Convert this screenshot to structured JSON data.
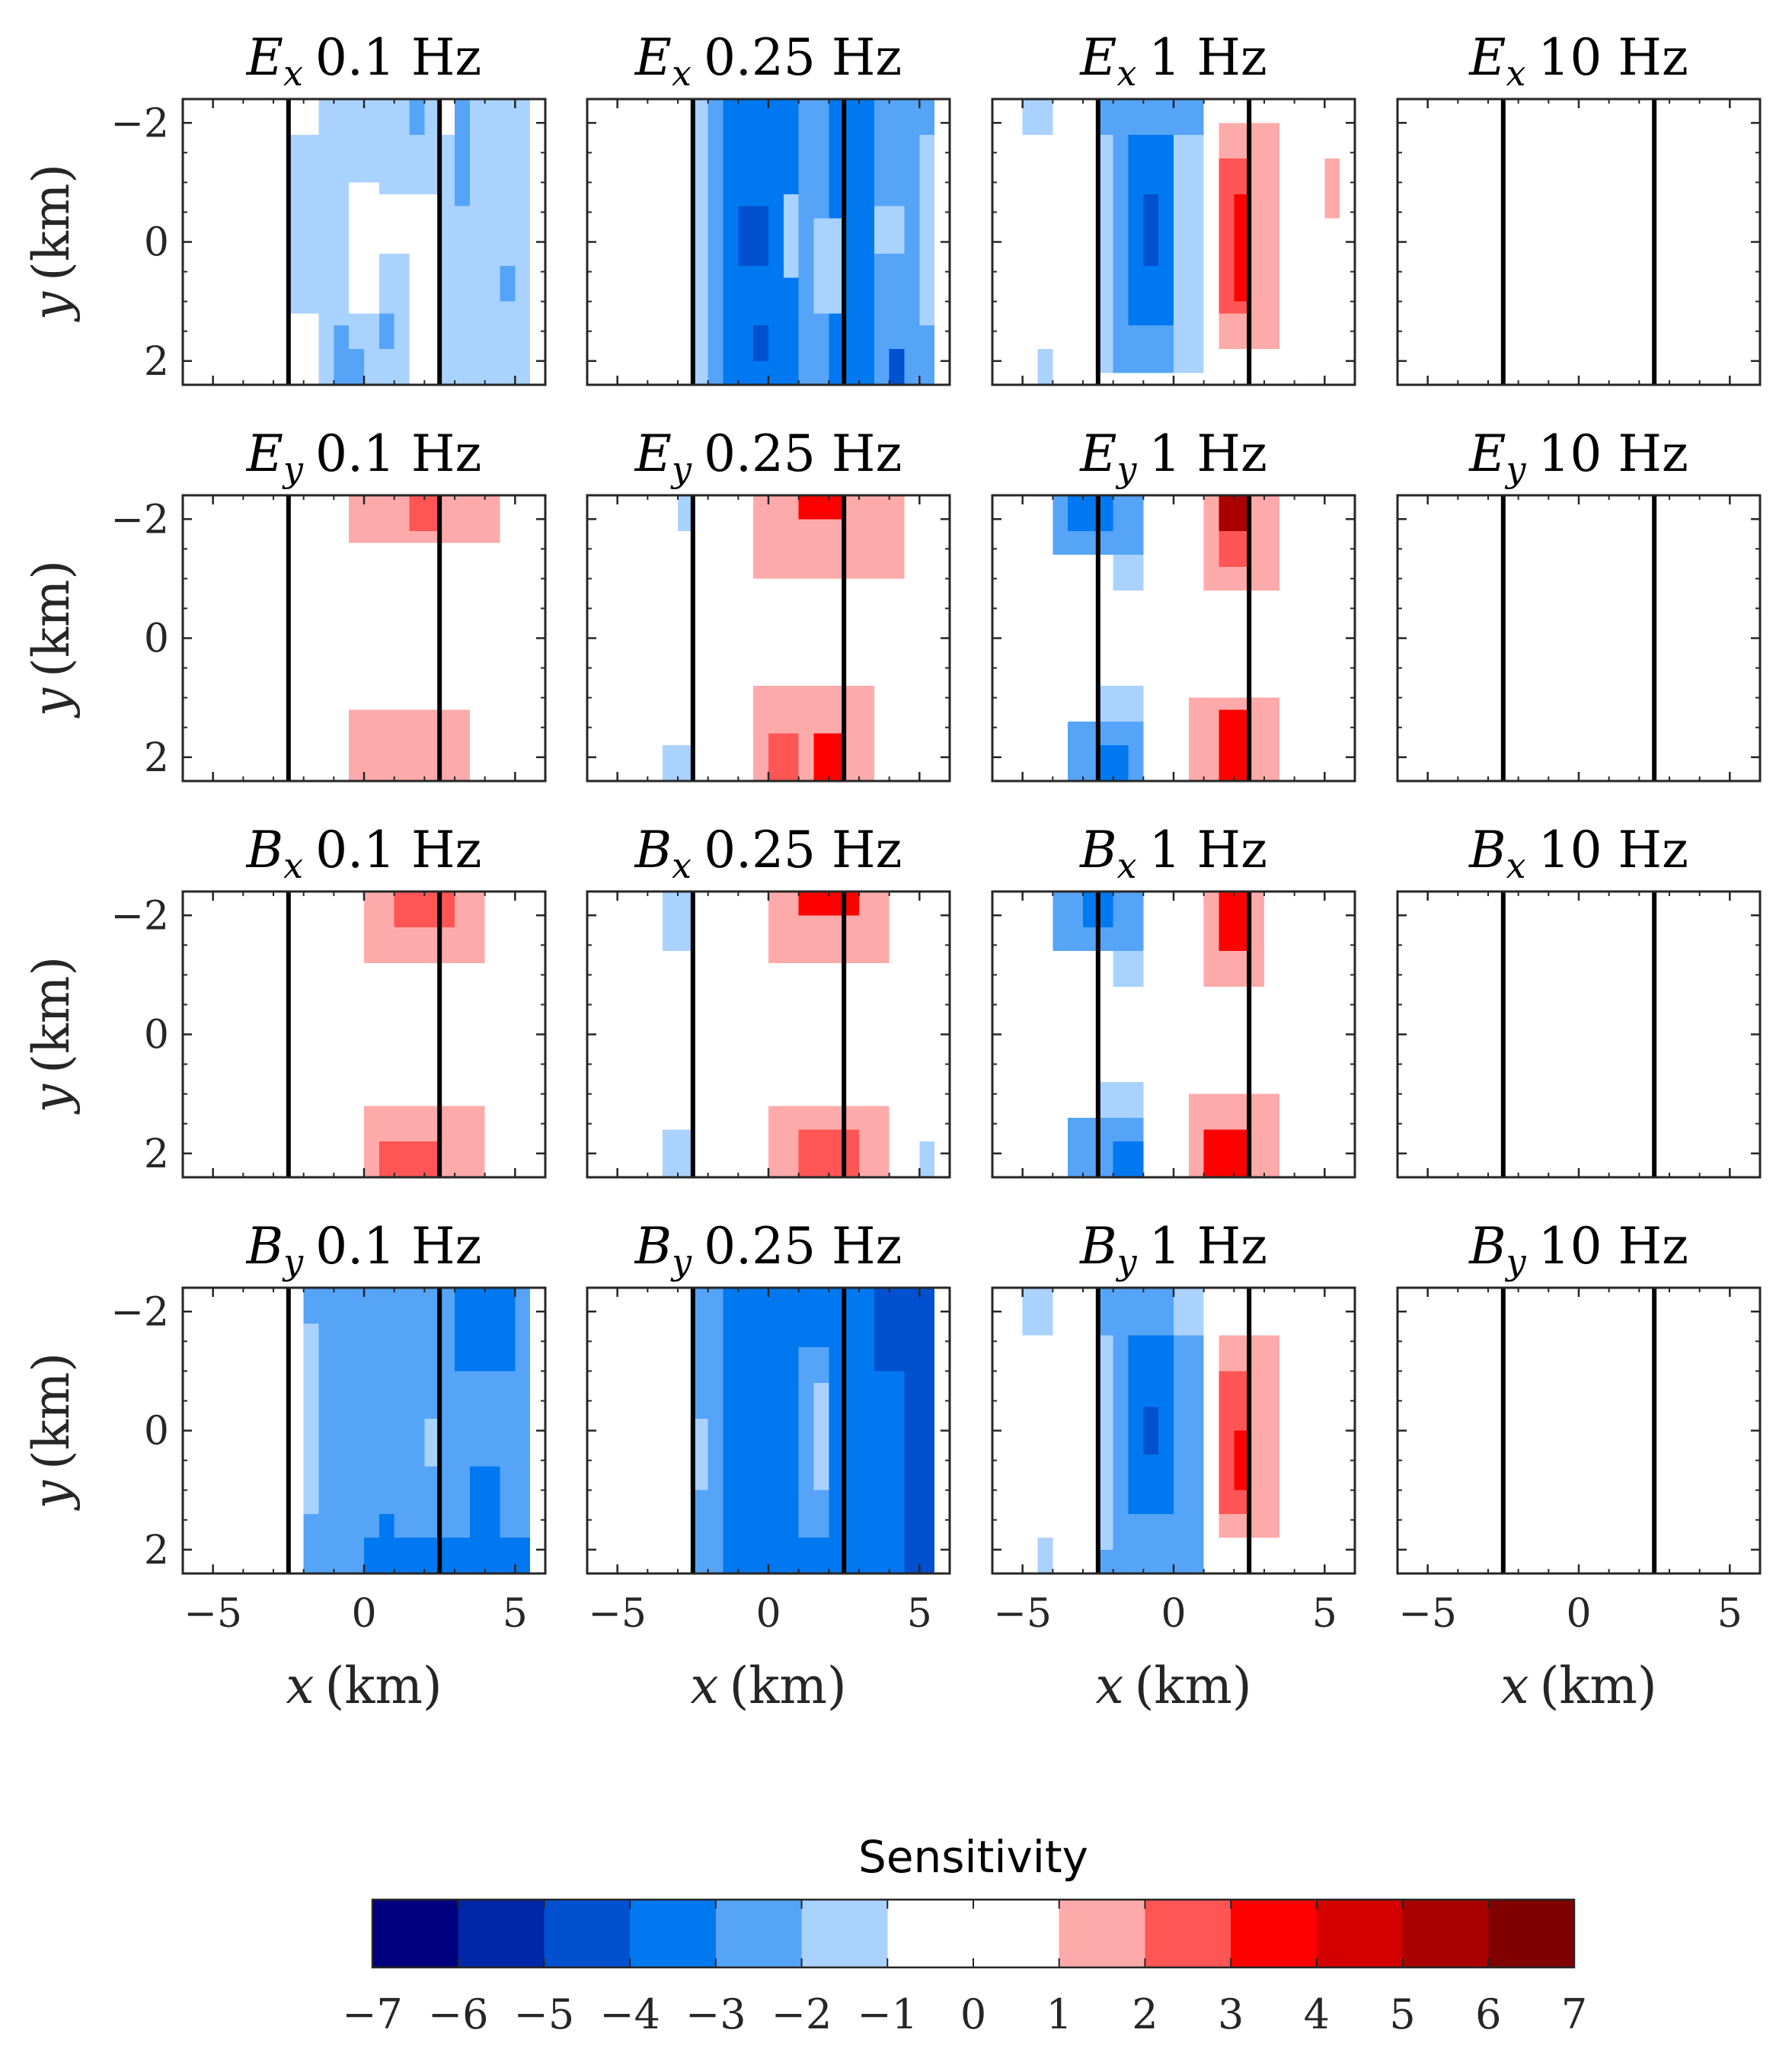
{
  "chart_data": {
    "type": "heatmap",
    "layout": {
      "rows": 4,
      "cols": 4
    },
    "x_range": [
      -6,
      6
    ],
    "y_range": [
      -2.4,
      2.4
    ],
    "x_ticks": [
      -5,
      0,
      5
    ],
    "y_ticks": [
      -2,
      0,
      2
    ],
    "xlabel": "x (km)",
    "ylabel": "y (km)",
    "reference_lines_x": [
      -2.5,
      2.5
    ],
    "grid": false,
    "cell_size_km": [
      0.5,
      0.5
    ],
    "panels": [
      {
        "field": "E",
        "component": "x",
        "freq": "0.1 Hz",
        "cells": [
          {
            "x0": -1.5,
            "x1": 2.5,
            "y0": -2.4,
            "y1": -1.8,
            "v": -1.5
          },
          {
            "x0": 3.5,
            "x1": 5.5,
            "y0": -2.4,
            "y1": -1.8,
            "v": -1.5
          },
          {
            "x0": 1.5,
            "x1": 2.0,
            "y0": -2.4,
            "y1": -1.8,
            "v": -2.5
          },
          {
            "x0": 3.0,
            "x1": 3.5,
            "y0": -2.4,
            "y1": -1.8,
            "v": -2.5
          },
          {
            "x0": -2.5,
            "x1": 2.5,
            "y0": -1.8,
            "y1": 1.2,
            "v": -1.5
          },
          {
            "x0": -0.5,
            "x1": 0.5,
            "y0": -1.0,
            "y1": 1.4,
            "v": 0
          },
          {
            "x0": 0.5,
            "x1": 1.5,
            "y0": -0.8,
            "y1": 0.2,
            "v": 0
          },
          {
            "x0": 2.5,
            "x1": 5.5,
            "y0": -1.8,
            "y1": 2.4,
            "v": -1.5
          },
          {
            "x0": 1.5,
            "x1": 2.5,
            "y0": -0.8,
            "y1": 2.4,
            "v": 0
          },
          {
            "x0": 3.0,
            "x1": 3.5,
            "y0": -1.8,
            "y1": -0.6,
            "v": -2.5
          },
          {
            "x0": 4.5,
            "x1": 5.0,
            "y0": 0.4,
            "y1": 1.0,
            "v": -2.5
          },
          {
            "x0": -1.5,
            "x1": 1.5,
            "y0": 1.2,
            "y1": 2.4,
            "v": -1.5
          },
          {
            "x0": -1.0,
            "x1": -0.5,
            "y0": 1.4,
            "y1": 2.4,
            "v": -2.5
          },
          {
            "x0": -0.5,
            "x1": 0.0,
            "y0": 1.8,
            "y1": 2.4,
            "v": -2.5
          },
          {
            "x0": 0.5,
            "x1": 1.0,
            "y0": 1.2,
            "y1": 1.8,
            "v": -2.5
          }
        ]
      },
      {
        "field": "E",
        "component": "x",
        "freq": "0.25 Hz",
        "cells": [
          {
            "x0": -2.5,
            "x1": 5.5,
            "y0": -2.4,
            "y1": 2.4,
            "v": -2.5
          },
          {
            "x0": -2.5,
            "x1": -2.0,
            "y0": -2.4,
            "y1": 2.4,
            "v": -1.5
          },
          {
            "x0": -1.5,
            "x1": 1.0,
            "y0": -2.4,
            "y1": 2.4,
            "v": -3.5
          },
          {
            "x0": 2.0,
            "x1": 3.5,
            "y0": -2.4,
            "y1": 2.4,
            "v": -3.5
          },
          {
            "x0": 0.5,
            "x1": 1.0,
            "y0": -0.8,
            "y1": 0.6,
            "v": -1.5
          },
          {
            "x0": 1.5,
            "x1": 2.5,
            "y0": -0.4,
            "y1": 1.2,
            "v": -1.5
          },
          {
            "x0": 3.5,
            "x1": 4.5,
            "y0": -0.6,
            "y1": 0.2,
            "v": -1.5
          },
          {
            "x0": -1.0,
            "x1": 0.0,
            "y0": -0.6,
            "y1": 0.4,
            "v": -4.5
          },
          {
            "x0": -0.5,
            "x1": 0.0,
            "y0": 1.4,
            "y1": 2.0,
            "v": -4.5
          },
          {
            "x0": 4.0,
            "x1": 4.5,
            "y0": 1.8,
            "y1": 2.4,
            "v": -4.5
          },
          {
            "x0": 5.0,
            "x1": 5.5,
            "y0": -1.8,
            "y1": 1.4,
            "v": -1.5
          }
        ]
      },
      {
        "field": "E",
        "component": "x",
        "freq": "1 Hz",
        "cells": [
          {
            "x0": -5.0,
            "x1": -4.0,
            "y0": -2.4,
            "y1": -1.8,
            "v": -1.5
          },
          {
            "x0": -2.5,
            "x1": 1.0,
            "y0": -2.4,
            "y1": 2.2,
            "v": -2.5
          },
          {
            "x0": -2.5,
            "x1": -2.0,
            "y0": -1.8,
            "y1": 2.2,
            "v": -1.5
          },
          {
            "x0": 0.0,
            "x1": 1.0,
            "y0": -1.8,
            "y1": 2.2,
            "v": -1.5
          },
          {
            "x0": -1.5,
            "x1": 0.0,
            "y0": -1.8,
            "y1": 1.4,
            "v": -3.5
          },
          {
            "x0": -1.0,
            "x1": -0.5,
            "y0": -0.8,
            "y1": 0.4,
            "v": -4.5
          },
          {
            "x0": 1.5,
            "x1": 3.5,
            "y0": -2.0,
            "y1": 1.8,
            "v": 1.5
          },
          {
            "x0": 1.5,
            "x1": 2.5,
            "y0": -1.4,
            "y1": 1.2,
            "v": 2.5
          },
          {
            "x0": 2.0,
            "x1": 2.5,
            "y0": -0.8,
            "y1": 1.0,
            "v": 3.5
          },
          {
            "x0": 5.0,
            "x1": 5.5,
            "y0": -1.4,
            "y1": -0.4,
            "v": 1.5
          },
          {
            "x0": -4.5,
            "x1": -4.0,
            "y0": 1.8,
            "y1": 2.4,
            "v": -1.5
          }
        ]
      },
      {
        "field": "E",
        "component": "x",
        "freq": "10 Hz",
        "cells": []
      },
      {
        "field": "E",
        "component": "y",
        "freq": "0.1 Hz",
        "cells": [
          {
            "x0": -0.5,
            "x1": 4.5,
            "y0": -2.4,
            "y1": -1.6,
            "v": 1.5
          },
          {
            "x0": 1.5,
            "x1": 2.5,
            "y0": -2.4,
            "y1": -1.8,
            "v": 2.5
          },
          {
            "x0": -0.5,
            "x1": 3.5,
            "y0": 1.2,
            "y1": 2.4,
            "v": 1.5
          }
        ]
      },
      {
        "field": "E",
        "component": "y",
        "freq": "0.25 Hz",
        "cells": [
          {
            "x0": -3.0,
            "x1": -2.5,
            "y0": -2.4,
            "y1": -1.8,
            "v": -1.5
          },
          {
            "x0": -0.5,
            "x1": 4.5,
            "y0": -2.4,
            "y1": -1.0,
            "v": 1.5
          },
          {
            "x0": 1.0,
            "x1": 2.5,
            "y0": -2.4,
            "y1": -2.0,
            "v": 3.5
          },
          {
            "x0": -0.5,
            "x1": 3.5,
            "y0": 0.8,
            "y1": 2.4,
            "v": 1.5
          },
          {
            "x0": 0.0,
            "x1": 1.0,
            "y0": 1.6,
            "y1": 2.4,
            "v": 2.5
          },
          {
            "x0": 1.5,
            "x1": 2.5,
            "y0": 1.6,
            "y1": 2.4,
            "v": 3.5
          },
          {
            "x0": -3.5,
            "x1": -2.5,
            "y0": 1.8,
            "y1": 2.4,
            "v": -1.5
          }
        ]
      },
      {
        "field": "E",
        "component": "y",
        "freq": "1 Hz",
        "cells": [
          {
            "x0": -4.0,
            "x1": -1.0,
            "y0": -2.4,
            "y1": -1.4,
            "v": -2.5
          },
          {
            "x0": -3.5,
            "x1": -2.0,
            "y0": -2.4,
            "y1": -1.8,
            "v": -3.5
          },
          {
            "x0": -2.0,
            "x1": -1.0,
            "y0": -1.4,
            "y1": -0.8,
            "v": -1.5
          },
          {
            "x0": 1.0,
            "x1": 3.5,
            "y0": -2.4,
            "y1": -0.8,
            "v": 1.5
          },
          {
            "x0": 1.5,
            "x1": 2.5,
            "y0": -2.4,
            "y1": -1.2,
            "v": 2.5
          },
          {
            "x0": 1.5,
            "x1": 2.5,
            "y0": -2.4,
            "y1": -1.8,
            "v": 5.5
          },
          {
            "x0": -2.5,
            "x1": -1.0,
            "y0": 0.8,
            "y1": 1.4,
            "v": -1.5
          },
          {
            "x0": -3.5,
            "x1": -1.0,
            "y0": 1.4,
            "y1": 2.4,
            "v": -2.5
          },
          {
            "x0": -2.5,
            "x1": -1.5,
            "y0": 1.8,
            "y1": 2.4,
            "v": -3.5
          },
          {
            "x0": 0.5,
            "x1": 3.5,
            "y0": 1.0,
            "y1": 2.4,
            "v": 1.5
          },
          {
            "x0": 1.5,
            "x1": 2.5,
            "y0": 1.2,
            "y1": 2.4,
            "v": 3.5
          }
        ]
      },
      {
        "field": "E",
        "component": "y",
        "freq": "10 Hz",
        "cells": []
      },
      {
        "field": "B",
        "component": "x",
        "freq": "0.1 Hz",
        "cells": [
          {
            "x0": 0.0,
            "x1": 4.0,
            "y0": -2.4,
            "y1": -1.2,
            "v": 1.5
          },
          {
            "x0": 1.0,
            "x1": 3.0,
            "y0": -2.4,
            "y1": -1.8,
            "v": 2.5
          },
          {
            "x0": 0.0,
            "x1": 4.0,
            "y0": 1.2,
            "y1": 2.4,
            "v": 1.5
          },
          {
            "x0": 0.5,
            "x1": 2.5,
            "y0": 1.8,
            "y1": 2.4,
            "v": 2.5
          }
        ]
      },
      {
        "field": "B",
        "component": "x",
        "freq": "0.25 Hz",
        "cells": [
          {
            "x0": -3.5,
            "x1": -2.5,
            "y0": -2.4,
            "y1": -1.4,
            "v": -1.5
          },
          {
            "x0": 0.0,
            "x1": 4.0,
            "y0": -2.4,
            "y1": -1.2,
            "v": 1.5
          },
          {
            "x0": 1.0,
            "x1": 3.0,
            "y0": -2.4,
            "y1": -2.0,
            "v": 3.5
          },
          {
            "x0": -3.5,
            "x1": -2.5,
            "y0": 1.6,
            "y1": 2.4,
            "v": -1.5
          },
          {
            "x0": 0.0,
            "x1": 4.0,
            "y0": 1.2,
            "y1": 2.4,
            "v": 1.5
          },
          {
            "x0": 1.0,
            "x1": 3.0,
            "y0": 1.6,
            "y1": 2.4,
            "v": 2.5
          },
          {
            "x0": 5.0,
            "x1": 5.5,
            "y0": 1.8,
            "y1": 2.4,
            "v": -1.5
          }
        ]
      },
      {
        "field": "B",
        "component": "x",
        "freq": "1 Hz",
        "cells": [
          {
            "x0": -4.0,
            "x1": -1.0,
            "y0": -2.4,
            "y1": -1.4,
            "v": -2.5
          },
          {
            "x0": -3.0,
            "x1": -2.0,
            "y0": -2.4,
            "y1": -1.8,
            "v": -3.5
          },
          {
            "x0": -2.0,
            "x1": -1.0,
            "y0": -1.4,
            "y1": -0.8,
            "v": -1.5
          },
          {
            "x0": 1.0,
            "x1": 3.0,
            "y0": -2.4,
            "y1": -0.8,
            "v": 1.5
          },
          {
            "x0": 1.5,
            "x1": 2.5,
            "y0": -2.4,
            "y1": -1.4,
            "v": 3.5
          },
          {
            "x0": -2.5,
            "x1": -1.0,
            "y0": 0.8,
            "y1": 1.4,
            "v": -1.5
          },
          {
            "x0": -3.5,
            "x1": -1.0,
            "y0": 1.4,
            "y1": 2.4,
            "v": -2.5
          },
          {
            "x0": -2.0,
            "x1": -1.0,
            "y0": 1.8,
            "y1": 2.4,
            "v": -3.5
          },
          {
            "x0": 0.5,
            "x1": 3.5,
            "y0": 1.0,
            "y1": 2.4,
            "v": 1.5
          },
          {
            "x0": 1.0,
            "x1": 2.5,
            "y0": 1.6,
            "y1": 2.4,
            "v": 3.5
          }
        ]
      },
      {
        "field": "B",
        "component": "x",
        "freq": "10 Hz",
        "cells": []
      },
      {
        "field": "B",
        "component": "y",
        "freq": "0.1 Hz",
        "cells": [
          {
            "x0": -2.5,
            "x1": 5.5,
            "y0": -2.4,
            "y1": 2.4,
            "v": -2.5
          },
          {
            "x0": -2.5,
            "x1": -1.5,
            "y0": -1.8,
            "y1": 1.4,
            "v": -1.5
          },
          {
            "x0": -2.5,
            "x1": -2.0,
            "y0": -2.4,
            "y1": 2.4,
            "v": 0
          },
          {
            "x0": 2.0,
            "x1": 2.5,
            "y0": -0.2,
            "y1": 0.6,
            "v": -1.5
          },
          {
            "x0": 3.0,
            "x1": 5.0,
            "y0": -2.4,
            "y1": -1.0,
            "v": -3.5
          },
          {
            "x0": 0.0,
            "x1": 5.5,
            "y0": 1.8,
            "y1": 2.4,
            "v": -3.5
          },
          {
            "x0": 0.5,
            "x1": 1.0,
            "y0": 1.4,
            "y1": 1.8,
            "v": -3.5
          },
          {
            "x0": 3.5,
            "x1": 4.5,
            "y0": 0.6,
            "y1": 1.8,
            "v": -3.5
          }
        ]
      },
      {
        "field": "B",
        "component": "y",
        "freq": "0.25 Hz",
        "cells": [
          {
            "x0": -2.5,
            "x1": 5.5,
            "y0": -2.4,
            "y1": 2.4,
            "v": -3.5
          },
          {
            "x0": -2.5,
            "x1": -1.5,
            "y0": -2.4,
            "y1": 2.4,
            "v": -2.5
          },
          {
            "x0": -2.5,
            "x1": -2.0,
            "y0": -0.2,
            "y1": 1.0,
            "v": -1.5
          },
          {
            "x0": 1.0,
            "x1": 2.0,
            "y0": -1.4,
            "y1": 1.8,
            "v": -2.5
          },
          {
            "x0": 1.5,
            "x1": 2.0,
            "y0": -0.8,
            "y1": 1.0,
            "v": -1.5
          },
          {
            "x0": 3.5,
            "x1": 5.5,
            "y0": -2.4,
            "y1": -1.0,
            "v": -4.5
          },
          {
            "x0": 4.5,
            "x1": 5.5,
            "y0": -1.0,
            "y1": 2.4,
            "v": -4.5
          }
        ]
      },
      {
        "field": "B",
        "component": "y",
        "freq": "1 Hz",
        "cells": [
          {
            "x0": -5.0,
            "x1": -4.0,
            "y0": -2.4,
            "y1": -1.6,
            "v": -1.5
          },
          {
            "x0": -2.5,
            "x1": 1.0,
            "y0": -2.4,
            "y1": 2.4,
            "v": -2.5
          },
          {
            "x0": -2.5,
            "x1": -2.0,
            "y0": -1.6,
            "y1": 2.0,
            "v": -1.5
          },
          {
            "x0": 0.0,
            "x1": 1.0,
            "y0": -2.4,
            "y1": -1.6,
            "v": -1.5
          },
          {
            "x0": -1.5,
            "x1": 0.0,
            "y0": -1.6,
            "y1": 1.4,
            "v": -3.5
          },
          {
            "x0": -1.0,
            "x1": -0.5,
            "y0": -0.4,
            "y1": 0.4,
            "v": -4.5
          },
          {
            "x0": 1.5,
            "x1": 3.5,
            "y0": -1.6,
            "y1": 1.8,
            "v": 1.5
          },
          {
            "x0": 1.5,
            "x1": 2.5,
            "y0": -1.0,
            "y1": 1.4,
            "v": 2.5
          },
          {
            "x0": 2.0,
            "x1": 2.5,
            "y0": 0.0,
            "y1": 1.0,
            "v": 3.5
          },
          {
            "x0": -4.5,
            "x1": -4.0,
            "y0": 1.8,
            "y1": 2.4,
            "v": -1.5
          }
        ]
      },
      {
        "field": "B",
        "component": "y",
        "freq": "10 Hz",
        "cells": []
      }
    ],
    "colorbar": {
      "label": "Sensitivity",
      "min": -7,
      "max": 7,
      "step": 1,
      "ticks": [
        -7,
        -6,
        -5,
        -4,
        -3,
        -2,
        -1,
        0,
        1,
        2,
        3,
        4,
        5,
        6,
        7
      ],
      "tick_labels": [
        "−7",
        "−6",
        "−5",
        "−4",
        "−3",
        "−2",
        "−1",
        "0",
        "1",
        "2",
        "3",
        "4",
        "5",
        "6",
        "7"
      ],
      "colors": [
        "#00007f",
        "#0027a8",
        "#0050d0",
        "#0078f0",
        "#55a4f8",
        "#aad2ff",
        "#ffffff",
        "#ffffff",
        "#ffaaaa",
        "#ff5555",
        "#ff0000",
        "#d40000",
        "#aa0000",
        "#800000"
      ],
      "white_bands": [
        "-1",
        "1"
      ]
    }
  }
}
